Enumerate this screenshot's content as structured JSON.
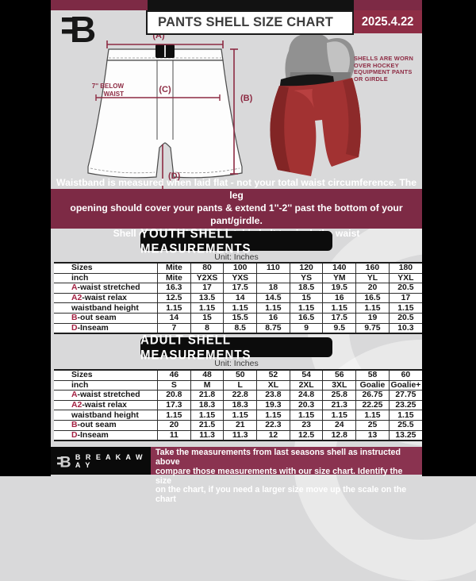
{
  "header": {
    "title": "PANTS SHELL SIZE CHART",
    "date": "2025.4.22",
    "logo_letter": "B"
  },
  "diagram": {
    "label_a": "(A)",
    "label_b": "(B)",
    "label_c": "(C)",
    "label_d": "(D)",
    "below_waist_line1": "7'' BELOW",
    "below_waist_line2": "WAIST",
    "photo_note_lines": [
      "SHELLS ARE WORN",
      "OVER HOCKEY",
      "EQUIPMENT PANTS",
      "OR GIRDLE"
    ]
  },
  "banner": {
    "line1": "Waistband is measured when laid flat - not your total waist circumference. The leg",
    "line2": "opening should cover your pants & extend 1''-2'' past the bottom of your pant/girdle.",
    "line3": "Shell comes with an adjustable belt to cinch the waist"
  },
  "youth": {
    "heading": "YOUTH SHELL MEASUREMENTS",
    "unit": "Unit: Inches",
    "rows": [
      {
        "prefix": "",
        "label": "Sizes",
        "bold": true,
        "values": [
          "Mite",
          "80",
          "100",
          "110",
          "120",
          "140",
          "160",
          "180"
        ]
      },
      {
        "prefix": "",
        "label": "inch",
        "bold": true,
        "values": [
          "Mite",
          "Y2XS",
          "YXS",
          "",
          "YS",
          "YM",
          "YL",
          "YXL"
        ]
      },
      {
        "prefix": "A",
        "label": "-waist stretched",
        "values": [
          "16.3",
          "17",
          "17.5",
          "18",
          "18.5",
          "19.5",
          "20",
          "20.5"
        ]
      },
      {
        "prefix": "A2",
        "label": "-waist relax",
        "values": [
          "12.5",
          "13.5",
          "14",
          "14.5",
          "15",
          "16",
          "16.5",
          "17"
        ]
      },
      {
        "prefix": "",
        "label": "waistband height",
        "values": [
          "1.15",
          "1.15",
          "1.15",
          "1.15",
          "1.15",
          "1.15",
          "1.15",
          "1.15"
        ]
      },
      {
        "prefix": "B",
        "label": "-out seam",
        "values": [
          "14",
          "15",
          "15.5",
          "16",
          "16.5",
          "17.5",
          "19",
          "20.5"
        ]
      },
      {
        "prefix": "D",
        "label": "-Inseam",
        "values": [
          "7",
          "8",
          "8.5",
          "8.75",
          "9",
          "9.5",
          "9.75",
          "10.3"
        ]
      }
    ]
  },
  "adult": {
    "heading": "ADULT SHELL MEASUREMENTS",
    "unit": "Unit: Inches",
    "rows": [
      {
        "prefix": "",
        "label": "Sizes",
        "bold": true,
        "values": [
          "46",
          "48",
          "50",
          "52",
          "54",
          "56",
          "58",
          "60"
        ]
      },
      {
        "prefix": "",
        "label": "inch",
        "bold": true,
        "values": [
          "S",
          "M",
          "L",
          "XL",
          "2XL",
          "3XL",
          "Goalie",
          "Goalie+"
        ]
      },
      {
        "prefix": "A",
        "label": "-waist stretched",
        "values": [
          "20.8",
          "21.8",
          "22.8",
          "23.8",
          "24.8",
          "25.8",
          "26.75",
          "27.75"
        ]
      },
      {
        "prefix": "A2",
        "label": "-waist relax",
        "values": [
          "17.3",
          "18.3",
          "18.3",
          "19.3",
          "20.3",
          "21.3",
          "22.25",
          "23.25"
        ]
      },
      {
        "prefix": "",
        "label": "waistband height",
        "values": [
          "1.15",
          "1.15",
          "1.15",
          "1.15",
          "1.15",
          "1.15",
          "1.15",
          "1.15"
        ]
      },
      {
        "prefix": "B",
        "label": "-out seam",
        "values": [
          "20",
          "21.5",
          "21",
          "22.3",
          "23",
          "24",
          "25",
          "25.5"
        ]
      },
      {
        "prefix": "D",
        "label": "-Inseam",
        "values": [
          "11",
          "11.3",
          "11.3",
          "12",
          "12.5",
          "12.8",
          "13",
          "13.25"
        ]
      }
    ]
  },
  "footer": {
    "brand": "B R E A K A W A Y",
    "logo_letter": "B",
    "line1": "Take the measurements from last seasons shell as instructed above",
    "line2": "compare those measurements  with our size chart. Identify the size",
    "line3": "on the chart, if you need a larger size move up the scale on the chart"
  },
  "colors": {
    "maroon": "#7d2a45",
    "date_box_maroon": "#8e2d45",
    "accent_red": "#a32142",
    "footer_maroon": "#8a3350",
    "shell_red": "#a23232",
    "background_gray": "#d9d9da"
  }
}
